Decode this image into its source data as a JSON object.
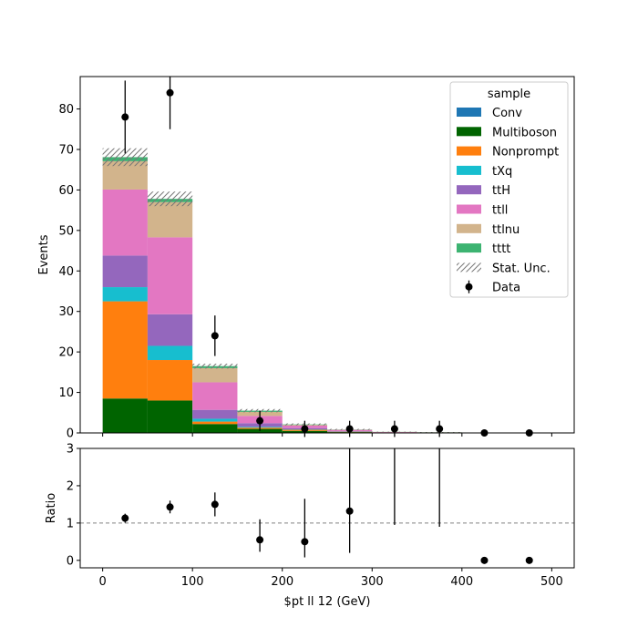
{
  "chart_data": [
    {
      "type": "stacked_histogram",
      "panel": "main",
      "ylabel": "Events",
      "xlabel": "",
      "xlim": [
        -25,
        525
      ],
      "ylim": [
        0,
        88
      ],
      "yticks": [
        0,
        10,
        20,
        30,
        40,
        50,
        60,
        70,
        80
      ],
      "bin_edges": [
        0,
        50,
        100,
        150,
        200,
        250,
        300,
        350,
        400,
        450,
        500
      ],
      "series": [
        {
          "name": "Multiboson",
          "color": "#006400",
          "values": [
            8.5,
            8.0,
            2.2,
            1.0,
            0.5,
            0.2,
            0.05,
            0.05,
            0,
            0
          ]
        },
        {
          "name": "Nonprompt",
          "color": "#ff7f0e",
          "values": [
            24.0,
            10.0,
            0.6,
            0.3,
            0.3,
            0.1,
            0.0,
            0.0,
            0,
            0
          ]
        },
        {
          "name": "tXq",
          "color": "#17becf",
          "values": [
            3.5,
            3.5,
            0.7,
            0.2,
            0.1,
            0.05,
            0.0,
            0.0,
            0,
            0
          ]
        },
        {
          "name": "ttH",
          "color": "#9467bd",
          "values": [
            7.8,
            7.8,
            2.2,
            0.9,
            0.3,
            0.1,
            0.05,
            0.02,
            0,
            0
          ]
        },
        {
          "name": "ttll",
          "color": "#e377c2",
          "values": [
            16.3,
            19.0,
            6.8,
            1.8,
            0.6,
            0.3,
            0.1,
            0.05,
            0,
            0
          ]
        },
        {
          "name": "ttlnu",
          "color": "#d2b48c",
          "values": [
            7.0,
            8.7,
            3.5,
            1.0,
            0.2,
            0.05,
            0.05,
            0.03,
            0,
            0
          ]
        },
        {
          "name": "tttt",
          "color": "#3cb371",
          "values": [
            1.0,
            0.8,
            0.5,
            0.3,
            0.1,
            0.05,
            0.02,
            0.02,
            0,
            0
          ]
        }
      ],
      "stat_unc": [
        2.2,
        1.8,
        0.6,
        0.4,
        0.25,
        0.15,
        0.05,
        0.05,
        0,
        0
      ],
      "data": {
        "name": "Data",
        "x": [
          25,
          75,
          125,
          175,
          225,
          275,
          325,
          375,
          425,
          475
        ],
        "y": [
          78,
          84,
          24,
          3,
          1,
          1,
          1,
          1,
          0,
          0
        ],
        "err": [
          9,
          9,
          5,
          2.5,
          2,
          2,
          2,
          2,
          0,
          0
        ]
      },
      "legend": {
        "title": "sample",
        "placement": "top-right",
        "entries": [
          {
            "label": "Conv",
            "color": "#1f77b4",
            "kind": "patch"
          },
          {
            "label": "Multiboson",
            "color": "#006400",
            "kind": "patch"
          },
          {
            "label": "Nonprompt",
            "color": "#ff7f0e",
            "kind": "patch"
          },
          {
            "label": "tXq",
            "color": "#17becf",
            "kind": "patch"
          },
          {
            "label": "ttH",
            "color": "#9467bd",
            "kind": "patch"
          },
          {
            "label": "ttll",
            "color": "#e377c2",
            "kind": "patch"
          },
          {
            "label": "ttlnu",
            "color": "#d2b48c",
            "kind": "patch"
          },
          {
            "label": "tttt",
            "color": "#3cb371",
            "kind": "patch"
          },
          {
            "label": "Stat. Unc.",
            "color": "#888888",
            "kind": "hatch"
          },
          {
            "label": "Data",
            "color": "#000000",
            "kind": "marker"
          }
        ]
      }
    },
    {
      "type": "scatter",
      "panel": "ratio",
      "ylabel": "Ratio",
      "xlabel": "$pt ll 12 (GeV)",
      "xlim": [
        -25,
        525
      ],
      "ylim": [
        -0.2,
        3
      ],
      "yticks": [
        0,
        1,
        2,
        3
      ],
      "xticks": [
        0,
        100,
        200,
        300,
        400,
        500
      ],
      "reference_line": 1,
      "x": [
        25,
        75,
        125,
        175,
        225,
        275,
        325,
        375,
        425,
        475
      ],
      "y": [
        1.13,
        1.43,
        1.5,
        0.55,
        0.5,
        1.32,
        3.2,
        3.2,
        0,
        0
      ],
      "err_low": [
        0.12,
        0.17,
        0.32,
        0.32,
        0.42,
        1.12,
        2.25,
        2.3,
        0,
        0
      ],
      "err_high": [
        0.12,
        0.17,
        0.32,
        0.55,
        1.15,
        1.9,
        0.5,
        0.5,
        0,
        0
      ]
    }
  ]
}
